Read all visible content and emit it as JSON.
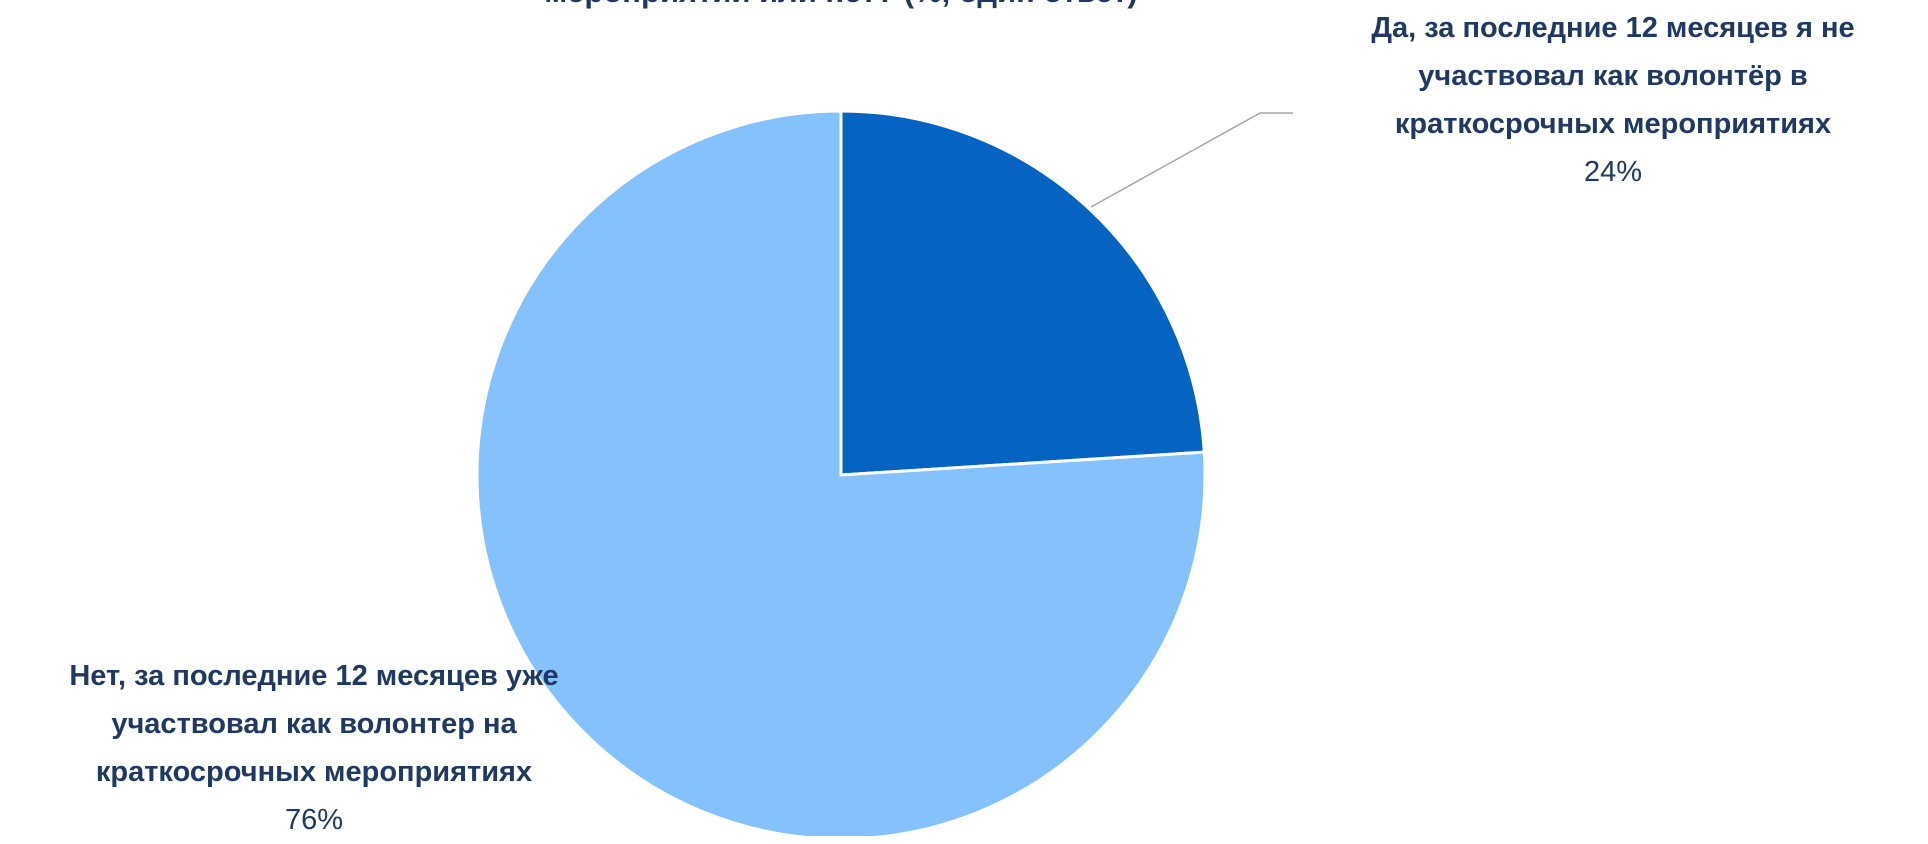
{
  "chart_data": {
    "type": "pie",
    "title": "мероприятий или нет? (%, один ответ)",
    "categories": [
      "Да, за последние 12 месяцев я не участвовал как волонтёр в краткосрочных мероприятиях",
      "Нет, за последние 12 месяцев уже участвовал как волонтер на краткосрочных мероприятиях"
    ],
    "values": [
      24,
      76
    ],
    "value_labels": [
      "24%",
      "76%"
    ],
    "colors": [
      "#0563c1",
      "#85c1fc"
    ]
  }
}
